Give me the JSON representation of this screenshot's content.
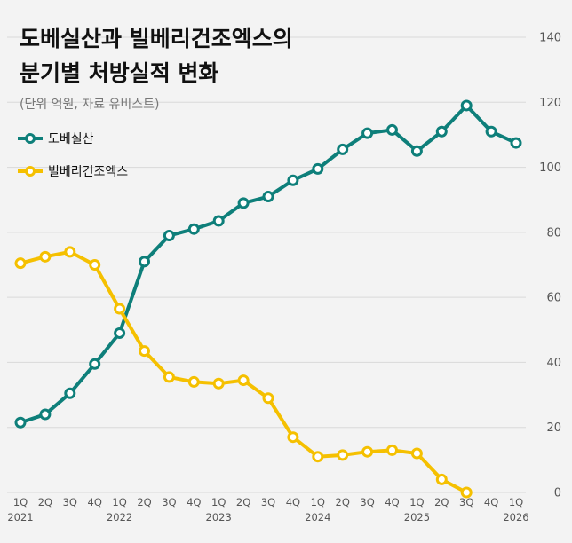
{
  "chart_data": {
    "type": "line",
    "title_line1": "도베실산과 빌베리건조엑스의",
    "title_line2": "분기별 처방실적 변화",
    "subtitle": "(단위 억원, 자료 유비스트)",
    "categories": [
      "1Q",
      "2Q",
      "3Q",
      "4Q",
      "1Q",
      "2Q",
      "3Q",
      "4Q",
      "1Q",
      "2Q",
      "3Q",
      "4Q",
      "1Q",
      "2Q",
      "3Q",
      "4Q",
      "1Q",
      "2Q",
      "3Q",
      "4Q",
      "1Q"
    ],
    "years": [
      {
        "label": "2021",
        "index": 0
      },
      {
        "label": "2022",
        "index": 4
      },
      {
        "label": "2023",
        "index": 8
      },
      {
        "label": "2024",
        "index": 12
      },
      {
        "label": "2025",
        "index": 16
      },
      {
        "label": "2026",
        "index": 20
      }
    ],
    "series": [
      {
        "name": "도베실산",
        "color": "#0e7f7a",
        "values": [
          21.5,
          24,
          30.5,
          39.5,
          49,
          71,
          79,
          81,
          83.5,
          89,
          91,
          96,
          99.5,
          105.5,
          110.5,
          111.5,
          105,
          111,
          119,
          111,
          107.5
        ]
      },
      {
        "name": "빌베리건조엑스",
        "color": "#f5c000",
        "values": [
          70.5,
          72.5,
          74,
          70,
          56.5,
          43.5,
          35.5,
          34,
          33.5,
          34.5,
          29,
          17,
          11,
          11.5,
          12.5,
          13,
          12,
          4,
          0,
          null,
          null
        ]
      }
    ],
    "ylim": [
      0,
      140
    ],
    "yticks": [
      0,
      20,
      40,
      60,
      80,
      100,
      120,
      140
    ],
    "y_axis_position": "right",
    "grid": true
  }
}
